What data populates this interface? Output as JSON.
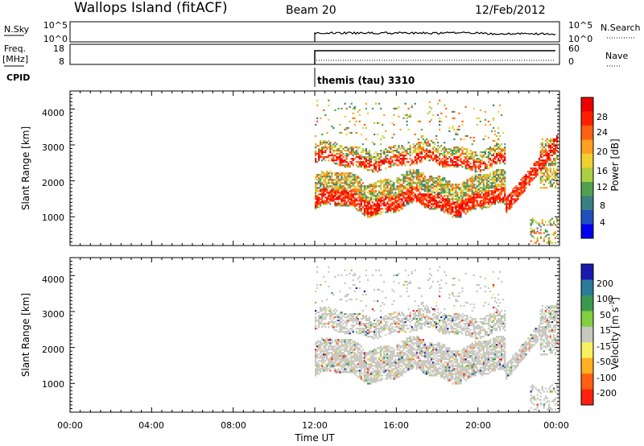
{
  "header": {
    "station": "Wallops Island (fitACF)",
    "beam": "Beam 20",
    "date": "12/Feb/2012"
  },
  "top_panels": {
    "nsky_label": "N.Sky",
    "nsky_ticks": [
      "10^5",
      "10^0"
    ],
    "nsearch_label": "N.Search",
    "nsearch_ticks": [
      "10^5",
      "10^0"
    ],
    "freq_label_1": "Freq.",
    "freq_label_2": "[MHz]",
    "freq_ticks": [
      "18",
      "8"
    ],
    "nave_label": "Nave",
    "nave_ticks": [
      "60",
      "0"
    ],
    "cpid_label": "CPID",
    "cpid_value": "themis (tau) 3310"
  },
  "chart_data": [
    {
      "type": "heatmap",
      "name": "power",
      "ylabel": "Slant Range [km]",
      "ylim": [
        200,
        4500
      ],
      "y_ticks": [
        "1000",
        "2000",
        "3000",
        "4000"
      ],
      "x_ticks": [
        "00:00",
        "04:00",
        "08:00",
        "12:00",
        "16:00",
        "20:00",
        "00:00"
      ],
      "xlim_hours": [
        0,
        24
      ],
      "colorbar_label": "Power [dB]",
      "colorbar_ticks": [
        "4",
        "8",
        "12",
        "16",
        "20",
        "24",
        "28"
      ],
      "colorbar_colors": [
        "#0000ee",
        "#2050c0",
        "#3a8080",
        "#50a050",
        "#a8d040",
        "#f0d030",
        "#ffa020",
        "#ff6010",
        "#ff2000",
        "#ee0000"
      ]
    },
    {
      "type": "heatmap",
      "name": "velocity",
      "ylabel": "Slant Range [km]",
      "ylim": [
        200,
        4500
      ],
      "y_ticks": [
        "1000",
        "2000",
        "3000",
        "4000"
      ],
      "x_ticks": [
        "00:00",
        "04:00",
        "08:00",
        "12:00",
        "16:00",
        "20:00",
        "00:00"
      ],
      "xlim_hours": [
        0,
        24
      ],
      "xlabel": "Time UT",
      "colorbar_label": "Velocity [m s",
      "colorbar_label_sup": "-1",
      "colorbar_label_end": "]",
      "colorbar_ticks": [
        "200",
        "100",
        "50",
        "15",
        "-15",
        "-50",
        "-100",
        "-200"
      ],
      "colorbar_colors": [
        "#1a1ab0",
        "#2a7a9a",
        "#3a9a50",
        "#80d040",
        "#c8c8c0",
        "#f8f060",
        "#ffb020",
        "#ff6010",
        "#ff2010"
      ]
    }
  ]
}
